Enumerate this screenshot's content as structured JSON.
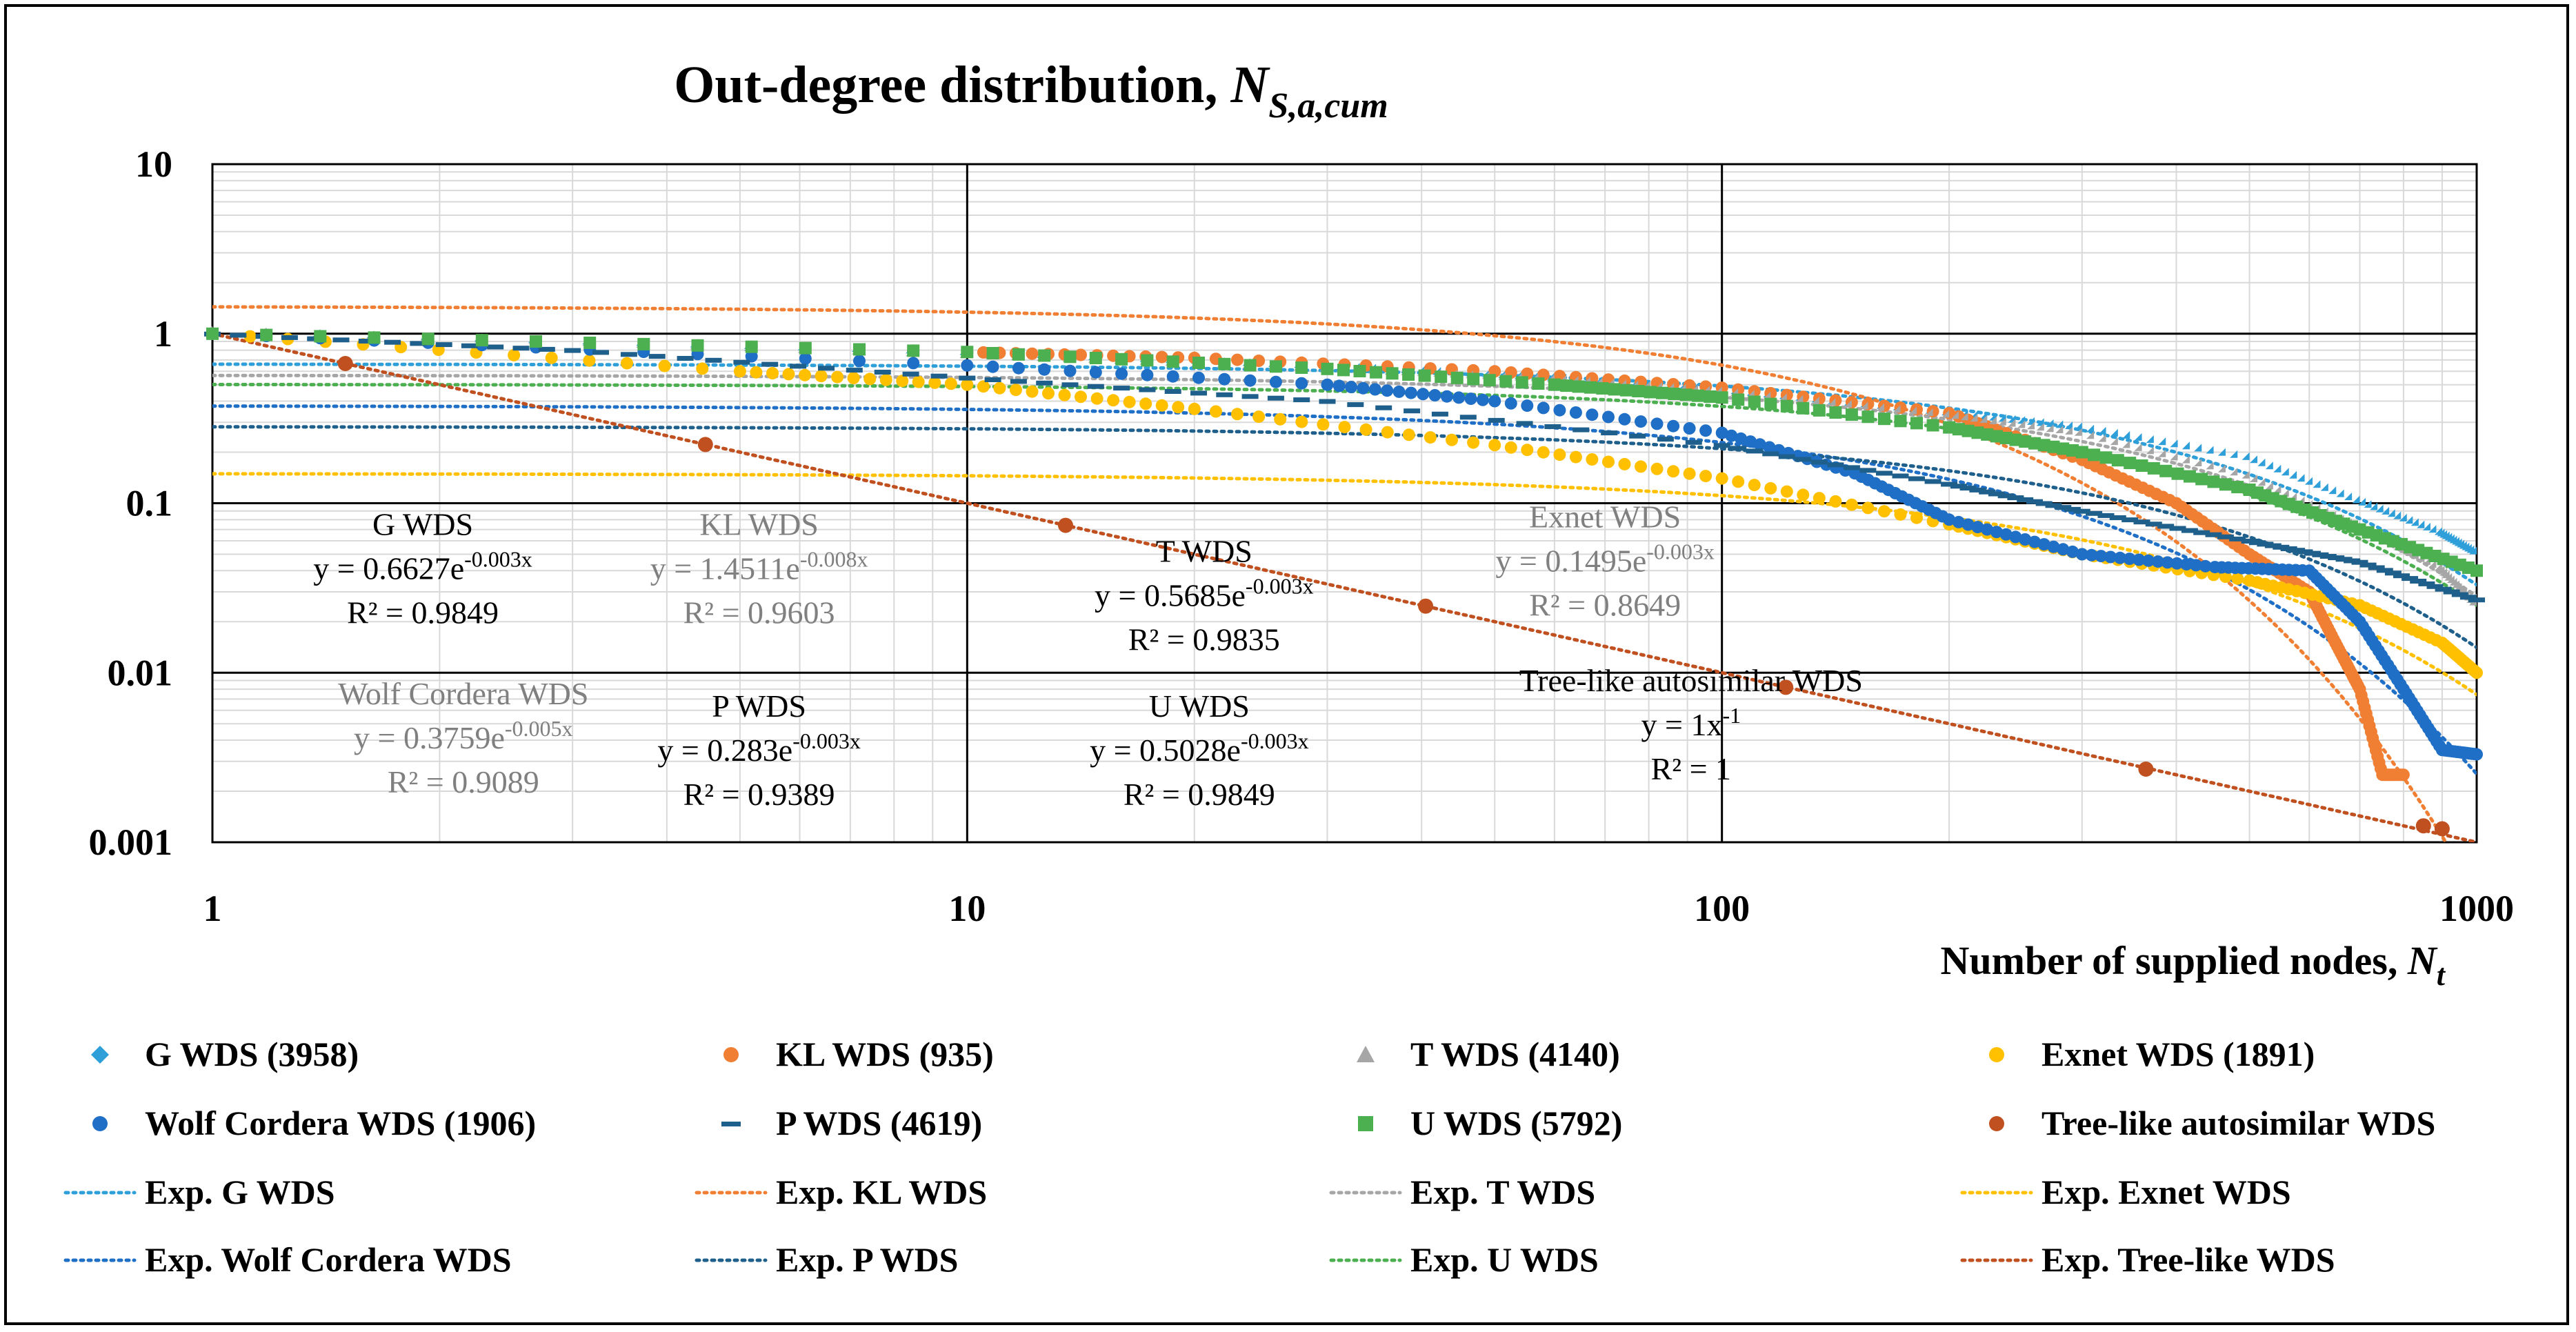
{
  "chart_data": {
    "type": "scatter",
    "title": "Out-degree distribution,",
    "title_var": "N",
    "title_sub": "S,a,cum",
    "xlabel": "Number of supplied nodes,",
    "xlabel_var": "N",
    "xlabel_sub": "t",
    "xscale": "log",
    "yscale": "log",
    "xlim": [
      1,
      1000
    ],
    "ylim": [
      0.001,
      10
    ],
    "xticks": [
      {
        "v": 1,
        "label": "1"
      },
      {
        "v": 10,
        "label": "10"
      },
      {
        "v": 100,
        "label": "100"
      },
      {
        "v": 1000,
        "label": "1000"
      }
    ],
    "yticks": [
      {
        "v": 10,
        "label": "10"
      },
      {
        "v": 1,
        "label": "1"
      },
      {
        "v": 0.1,
        "label": "0.1"
      },
      {
        "v": 0.01,
        "label": "0.01"
      },
      {
        "v": 0.001,
        "label": "0.001"
      }
    ],
    "grid": true,
    "legend_position": "bottom",
    "series": [
      {
        "id": "g",
        "name": "G WDS (3958)",
        "marker": "diamond",
        "color": "#2E9FD8",
        "pts": [
          [
            1,
            1
          ],
          [
            10,
            0.75
          ],
          [
            30,
            0.62
          ],
          [
            60,
            0.53
          ],
          [
            100,
            0.45
          ],
          [
            200,
            0.33
          ],
          [
            300,
            0.27
          ],
          [
            500,
            0.18
          ],
          [
            700,
            0.1
          ],
          [
            900,
            0.065
          ],
          [
            1000,
            0.05
          ]
        ]
      },
      {
        "id": "kl",
        "name": "KL WDS (935)",
        "marker": "circle",
        "color": "#F07F33",
        "pts": [
          [
            1,
            1
          ],
          [
            10,
            0.78
          ],
          [
            20,
            0.72
          ],
          [
            50,
            0.6
          ],
          [
            100,
            0.48
          ],
          [
            200,
            0.34
          ],
          [
            300,
            0.18
          ],
          [
            400,
            0.1
          ],
          [
            500,
            0.05
          ],
          [
            600,
            0.03
          ],
          [
            650,
            0.015
          ],
          [
            700,
            0.008
          ],
          [
            750,
            0.0025
          ],
          [
            800,
            0.0025
          ]
        ]
      },
      {
        "id": "t",
        "name": "T WDS (4140)",
        "marker": "triangle",
        "color": "#A6A6A6",
        "pts": [
          [
            1,
            1
          ],
          [
            10,
            0.72
          ],
          [
            30,
            0.6
          ],
          [
            60,
            0.52
          ],
          [
            100,
            0.44
          ],
          [
            200,
            0.32
          ],
          [
            300,
            0.25
          ],
          [
            500,
            0.14
          ],
          [
            700,
            0.07
          ],
          [
            900,
            0.04
          ],
          [
            1000,
            0.025
          ]
        ]
      },
      {
        "id": "exnet",
        "name": "Exnet WDS (1891)",
        "marker": "circle",
        "color": "#FFC000",
        "pts": [
          [
            1,
            1
          ],
          [
            5,
            0.6
          ],
          [
            10,
            0.5
          ],
          [
            20,
            0.36
          ],
          [
            50,
            0.22
          ],
          [
            100,
            0.14
          ],
          [
            200,
            0.075
          ],
          [
            300,
            0.05
          ],
          [
            500,
            0.035
          ],
          [
            700,
            0.025
          ],
          [
            900,
            0.015
          ],
          [
            1000,
            0.01
          ]
        ]
      },
      {
        "id": "wolf",
        "name": "Wolf Cordera WDS (1906)",
        "marker": "circle",
        "color": "#1F6FC6",
        "pts": [
          [
            1,
            1
          ],
          [
            10,
            0.65
          ],
          [
            30,
            0.5
          ],
          [
            50,
            0.4
          ],
          [
            100,
            0.26
          ],
          [
            150,
            0.15
          ],
          [
            200,
            0.08
          ],
          [
            300,
            0.05
          ],
          [
            450,
            0.042
          ],
          [
            600,
            0.04
          ],
          [
            700,
            0.02
          ],
          [
            800,
            0.008
          ],
          [
            900,
            0.0035
          ],
          [
            1000,
            0.0033
          ]
        ]
      },
      {
        "id": "p",
        "name": "P WDS (4619)",
        "marker": "dash",
        "color": "#1F5F8B",
        "pts": [
          [
            1,
            1
          ],
          [
            3,
            0.8
          ],
          [
            10,
            0.55
          ],
          [
            30,
            0.4
          ],
          [
            100,
            0.22
          ],
          [
            200,
            0.13
          ],
          [
            300,
            0.09
          ],
          [
            500,
            0.06
          ],
          [
            700,
            0.045
          ],
          [
            1000,
            0.027
          ]
        ]
      },
      {
        "id": "u",
        "name": "U WDS (5792)",
        "marker": "square",
        "color": "#4CAF50",
        "pts": [
          [
            1,
            1
          ],
          [
            10,
            0.78
          ],
          [
            30,
            0.62
          ],
          [
            60,
            0.5
          ],
          [
            100,
            0.42
          ],
          [
            200,
            0.28
          ],
          [
            300,
            0.2
          ],
          [
            500,
            0.12
          ],
          [
            700,
            0.07
          ],
          [
            1000,
            0.04
          ]
        ]
      },
      {
        "id": "tree",
        "name": "Tree-like autosimilar WDS",
        "marker": "circle",
        "color": "#C0501F",
        "pts": [
          [
            1.5,
            0.667
          ],
          [
            4.5,
            0.222
          ],
          [
            13.5,
            0.074
          ],
          [
            40.5,
            0.0247
          ],
          [
            121.5,
            0.0082
          ],
          [
            364.5,
            0.0027
          ],
          [
            850,
            0.00125
          ],
          [
            900,
            0.0012
          ]
        ]
      }
    ],
    "trendlines": [
      {
        "id": "exp-g",
        "name": "Exp. G WDS",
        "color": "#2E9FD8",
        "kind": "exp",
        "a": 0.6627,
        "b": -0.003
      },
      {
        "id": "exp-kl",
        "name": "Exp. KL WDS",
        "color": "#F07F33",
        "kind": "exp",
        "a": 1.4511,
        "b": -0.008
      },
      {
        "id": "exp-t",
        "name": "Exp. T WDS",
        "color": "#A6A6A6",
        "kind": "exp",
        "a": 0.5685,
        "b": -0.003
      },
      {
        "id": "exp-exnet",
        "name": "Exp. Exnet WDS",
        "color": "#FFC000",
        "kind": "exp",
        "a": 0.1495,
        "b": -0.003
      },
      {
        "id": "exp-wolf",
        "name": "Exp. Wolf Cordera WDS",
        "color": "#1F6FC6",
        "kind": "exp",
        "a": 0.3759,
        "b": -0.005
      },
      {
        "id": "exp-p",
        "name": "Exp. P WDS",
        "color": "#1F5F8B",
        "kind": "exp",
        "a": 0.283,
        "b": -0.003
      },
      {
        "id": "exp-u",
        "name": "Exp. U WDS",
        "color": "#4CAF50",
        "kind": "exp",
        "a": 0.5028,
        "b": -0.003
      },
      {
        "id": "exp-tree",
        "name": "Exp. Tree-like WDS",
        "color": "#C0501F",
        "kind": "pow",
        "a": 1,
        "b": -1
      }
    ],
    "annotations": [
      {
        "id": "g",
        "title": "G WDS",
        "eq": "y = 0.6627e",
        "exp": "-0.003x",
        "r2": "R² = 0.9849",
        "color": "#000000",
        "x": 1.9,
        "y": 0.065
      },
      {
        "id": "kl",
        "title": "KL WDS",
        "eq": "y = 1.4511e",
        "exp": "-0.008x",
        "r2": "R² = 0.9603",
        "color": "#808080",
        "x": 5.3,
        "y": 0.065
      },
      {
        "id": "t",
        "title": "T WDS",
        "eq": "y = 0.5685e",
        "exp": "-0.003x",
        "r2": "R² = 0.9835",
        "color": "#000000",
        "x": 20.6,
        "y": 0.045
      },
      {
        "id": "exnet",
        "title": "Exnet WDS",
        "eq": "y = 0.1495e",
        "exp": "-0.003x",
        "r2": "R² = 0.8649",
        "color": "#808080",
        "x": 70.0,
        "y": 0.072
      },
      {
        "id": "wolf",
        "title": "Wolf Cordera WDS",
        "eq": "y = 0.3759e",
        "exp": "-0.005x",
        "r2": "R² = 0.9089",
        "color": "#808080",
        "x": 2.15,
        "y": 0.0065
      },
      {
        "id": "p",
        "title": "P WDS",
        "eq": "y = 0.283e",
        "exp": "-0.003x",
        "r2": "R² = 0.9389",
        "color": "#000000",
        "x": 5.3,
        "y": 0.0055
      },
      {
        "id": "u",
        "title": "U WDS",
        "eq": "y = 0.5028e",
        "exp": "-0.003x",
        "r2": "R² = 0.9849",
        "color": "#000000",
        "x": 20.3,
        "y": 0.0055
      },
      {
        "id": "tree",
        "title": "Tree-like autosimilar WDS",
        "eq": "y = 1x",
        "exp": "-1",
        "r2": "R² = 1",
        "color": "#000000",
        "x": 91.0,
        "y": 0.0078
      }
    ]
  }
}
